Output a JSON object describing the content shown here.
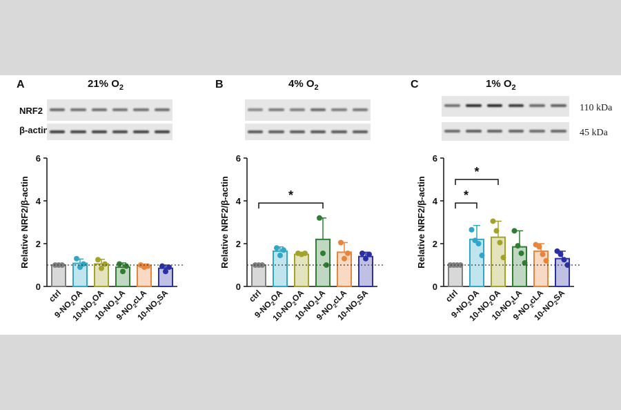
{
  "figure": {
    "panels": [
      {
        "letter": "A",
        "title_main": "21% O",
        "title_sub": "2"
      },
      {
        "letter": "B",
        "title_main": "4% O",
        "title_sub": "2"
      },
      {
        "letter": "C",
        "title_main": "1% O",
        "title_sub": "2"
      }
    ],
    "blot_labels": {
      "nrf2": "NRF2",
      "actin": "β-actin"
    },
    "kda_labels": {
      "top": "110 kDa",
      "bottom": "45 kDa"
    }
  },
  "chart_data": [
    {
      "type": "bar",
      "panel": "A",
      "title": "21% O2",
      "ylabel": "Relative NRF2/β-actin",
      "ylim": [
        0,
        6
      ],
      "yticks": [
        0,
        2,
        4,
        6
      ],
      "reference_line": 1,
      "categories": [
        {
          "pre": "ctrl",
          "sub": "",
          "post": ""
        },
        {
          "pre": "9-NO",
          "sub": "2",
          "post": "OA"
        },
        {
          "pre": "10-NO",
          "sub": "2",
          "post": "OA"
        },
        {
          "pre": "10-NO",
          "sub": "2",
          "post": "LA"
        },
        {
          "pre": "9-NO",
          "sub": "2",
          "post": "cLA"
        },
        {
          "pre": "10-NO",
          "sub": "2",
          "post": "SA"
        }
      ],
      "colors": [
        "#7f7f7f",
        "#2fa8c7",
        "#a3a328",
        "#2e7d32",
        "#e8853a",
        "#2a2fa3"
      ],
      "values": [
        1.0,
        1.08,
        1.05,
        0.9,
        0.95,
        0.85
      ],
      "errors": [
        0.0,
        0.2,
        0.22,
        0.2,
        0.1,
        0.15
      ],
      "points": [
        [
          1.0,
          1.0,
          1.0
        ],
        [
          1.3,
          0.9,
          1.05
        ],
        [
          1.25,
          0.85,
          1.05
        ],
        [
          1.05,
          0.7,
          0.95
        ],
        [
          1.0,
          0.9,
          0.95
        ],
        [
          0.95,
          0.7,
          0.9
        ]
      ],
      "significance": []
    },
    {
      "type": "bar",
      "panel": "B",
      "title": "4% O2",
      "ylabel": "Relative NRF2/β-actin",
      "ylim": [
        0,
        6
      ],
      "yticks": [
        0,
        2,
        4,
        6
      ],
      "reference_line": 1,
      "categories": [
        {
          "pre": "ctrl",
          "sub": "",
          "post": ""
        },
        {
          "pre": "9-NO",
          "sub": "2",
          "post": "OA"
        },
        {
          "pre": "10-NO",
          "sub": "2",
          "post": "OA"
        },
        {
          "pre": "10-NO",
          "sub": "2",
          "post": "LA"
        },
        {
          "pre": "9-NO",
          "sub": "2",
          "post": "cLA"
        },
        {
          "pre": "10-NO",
          "sub": "2",
          "post": "SA"
        }
      ],
      "colors": [
        "#7f7f7f",
        "#2fa8c7",
        "#a3a328",
        "#2e7d32",
        "#e8853a",
        "#2a2fa3"
      ],
      "values": [
        1.0,
        1.65,
        1.5,
        2.2,
        1.6,
        1.4
      ],
      "errors": [
        0.0,
        0.2,
        0.1,
        1.0,
        0.45,
        0.2
      ],
      "points": [
        [
          1.0,
          1.0,
          1.0
        ],
        [
          1.8,
          1.45,
          1.7
        ],
        [
          1.55,
          1.5,
          1.55
        ],
        [
          3.2,
          1.55,
          1.0
        ],
        [
          2.05,
          1.3,
          1.55
        ],
        [
          1.55,
          1.3,
          1.5
        ]
      ],
      "significance": [
        {
          "from": 0,
          "to": 3,
          "y": 3.9,
          "label": "*"
        }
      ]
    },
    {
      "type": "bar",
      "panel": "C",
      "title": "1% O2",
      "ylabel": "Relative NRF2/β-actin",
      "ylim": [
        0,
        6
      ],
      "yticks": [
        0,
        2,
        4,
        6
      ],
      "reference_line": 1,
      "categories": [
        {
          "pre": "ctrl",
          "sub": "",
          "post": ""
        },
        {
          "pre": "9-NO",
          "sub": "2",
          "post": "OA"
        },
        {
          "pre": "10-NO",
          "sub": "2",
          "post": "OA"
        },
        {
          "pre": "10-NO",
          "sub": "2",
          "post": "LA"
        },
        {
          "pre": "9-NO",
          "sub": "2",
          "post": "cLA"
        },
        {
          "pre": "10-NO",
          "sub": "2",
          "post": "SA"
        }
      ],
      "colors": [
        "#7f7f7f",
        "#2fa8c7",
        "#a3a328",
        "#2e7d32",
        "#e8853a",
        "#2a2fa3"
      ],
      "values": [
        1.0,
        2.2,
        2.3,
        1.85,
        1.65,
        1.3
      ],
      "errors": [
        0.0,
        0.65,
        0.75,
        0.75,
        0.35,
        0.35
      ],
      "points": [
        [
          1.0,
          1.0,
          1.0,
          1.0
        ],
        [
          2.65,
          2.15,
          2.0,
          1.45
        ],
        [
          3.05,
          2.6,
          2.05,
          1.35
        ],
        [
          2.6,
          1.9,
          1.55,
          1.1
        ],
        [
          1.95,
          1.85,
          1.5,
          1.2
        ],
        [
          1.65,
          1.5,
          1.25,
          1.0
        ]
      ],
      "significance": [
        {
          "from": 0,
          "to": 1,
          "y": 3.9,
          "label": "*"
        },
        {
          "from": 0,
          "to": 2,
          "y": 5.0,
          "label": "*"
        }
      ]
    }
  ]
}
